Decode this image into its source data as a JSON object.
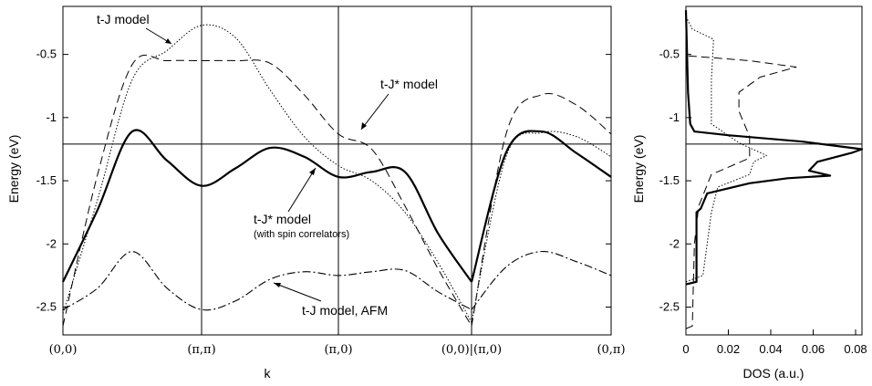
{
  "chart_data": [
    {
      "type": "line",
      "xlabel": "k",
      "ylabel": "Energy (eV)",
      "ylim": [
        -2.72,
        -0.12
      ],
      "y_ticks": [
        -0.5,
        -1,
        -1.5,
        -2,
        -2.5
      ],
      "y_tick_labels": [
        "-0.5",
        "-1",
        "-1.5",
        "-2",
        "-2.5"
      ],
      "x_ticks": [
        0,
        1,
        2,
        3,
        4
      ],
      "x_tick_labels": [
        "(0,0)",
        "(π,π)",
        "(π,0)",
        "(0,0)|(π,0)",
        "(0,π)"
      ],
      "panel_break": 3,
      "fermi_energy": -1.23,
      "grid": false,
      "legend": "none",
      "annotations": {
        "tj": "t-J model",
        "tjstar": "t-J* model",
        "tjspin": "t-J* model",
        "tjspin_sub": "(with spin correlators)",
        "afm": "t-J model, AFM"
      },
      "series": [
        {
          "style": "thick",
          "x": [
            0,
            0.25,
            0.5,
            0.75,
            1,
            1.25,
            1.5,
            1.75,
            2,
            2.25,
            2.5,
            2.75,
            3,
            3.25,
            3.5,
            3.75,
            4
          ],
          "y": [
            -2.3,
            -1.73,
            -1.11,
            -1.34,
            -1.54,
            -1.4,
            -1.24,
            -1.31,
            -1.47,
            -1.43,
            -1.43,
            -1.92,
            -2.3,
            -1.27,
            -1.11,
            -1.28,
            -1.47
          ]
        },
        {
          "style": "dotted",
          "x": [
            0,
            0.25,
            0.5,
            0.75,
            1,
            1.25,
            1.5,
            1.75,
            2,
            2.25,
            2.5,
            2.75,
            3,
            3.25,
            3.5,
            3.75,
            4
          ],
          "y": [
            -2.55,
            -1.65,
            -0.7,
            -0.47,
            -0.27,
            -0.37,
            -0.78,
            -1.15,
            -1.38,
            -1.5,
            -1.75,
            -2.15,
            -2.62,
            -1.3,
            -1.12,
            -1.15,
            -1.31
          ]
        },
        {
          "style": "dashed",
          "x": [
            0,
            0.25,
            0.5,
            0.75,
            1,
            1.25,
            1.5,
            1.75,
            2,
            2.25,
            2.5,
            2.75,
            3,
            3.25,
            3.5,
            3.75,
            4
          ],
          "y": [
            -2.65,
            -1.45,
            -0.58,
            -0.55,
            -0.55,
            -0.55,
            -0.57,
            -0.82,
            -1.13,
            -1.25,
            -1.7,
            -2.2,
            -2.65,
            -1.12,
            -0.82,
            -0.9,
            -1.13
          ]
        },
        {
          "style": "dashdot",
          "x": [
            0,
            0.25,
            0.5,
            0.75,
            1,
            1.25,
            1.5,
            1.75,
            2,
            2.25,
            2.5,
            2.75,
            3,
            3.25,
            3.5,
            3.75,
            4
          ],
          "y": [
            -2.52,
            -2.35,
            -2.06,
            -2.35,
            -2.52,
            -2.45,
            -2.28,
            -2.22,
            -2.25,
            -2.22,
            -2.21,
            -2.38,
            -2.52,
            -2.18,
            -2.06,
            -2.14,
            -2.25
          ]
        }
      ]
    },
    {
      "type": "line",
      "xlabel": "DOS (a.u.)",
      "ylabel": "Energy (eV)",
      "xlim": [
        0,
        0.083
      ],
      "ylim": [
        -2.72,
        -0.12
      ],
      "x_ticks": [
        0,
        0.02,
        0.04,
        0.06,
        0.08
      ],
      "x_tick_labels": [
        "0",
        "0.02",
        "0.04",
        "0.06",
        "0.08"
      ],
      "y_ticks": [
        -0.5,
        -1,
        -1.5,
        -2,
        -2.5
      ],
      "y_tick_labels": [
        "-0.5",
        "-1",
        "-1.5",
        "-2",
        "-2.5"
      ],
      "fermi_energy": -1.23,
      "grid": false,
      "legend": "none",
      "series": [
        {
          "style": "thick",
          "points": [
            [
              0,
              -2.32
            ],
            [
              0.005,
              -2.3
            ],
            [
              0.005,
              -1.75
            ],
            [
              0.007,
              -1.72
            ],
            [
              0.01,
              -1.6
            ],
            [
              0.03,
              -1.52
            ],
            [
              0.048,
              -1.48
            ],
            [
              0.068,
              -1.46
            ],
            [
              0.058,
              -1.42
            ],
            [
              0.062,
              -1.35
            ],
            [
              0.078,
              -1.28
            ],
            [
              0.083,
              -1.25
            ],
            [
              0.055,
              -1.19
            ],
            [
              0.02,
              -1.14
            ],
            [
              0.004,
              -1.11
            ],
            [
              0.002,
              -1.05
            ],
            [
              0.001,
              -0.8
            ],
            [
              0,
              -0.15
            ]
          ]
        },
        {
          "style": "dotted",
          "points": [
            [
              0,
              -2.3
            ],
            [
              0.008,
              -2.25
            ],
            [
              0.01,
              -2.0
            ],
            [
              0.012,
              -1.75
            ],
            [
              0.015,
              -1.55
            ],
            [
              0.03,
              -1.45
            ],
            [
              0.032,
              -1.35
            ],
            [
              0.038,
              -1.3
            ],
            [
              0.025,
              -1.2
            ],
            [
              0.012,
              -1.05
            ],
            [
              0.012,
              -0.7
            ],
            [
              0.013,
              -0.4
            ],
            [
              0.013,
              -0.38
            ],
            [
              0.003,
              -0.3
            ],
            [
              0,
              -0.2
            ]
          ]
        },
        {
          "style": "dashed",
          "points": [
            [
              0,
              -2.67
            ],
            [
              0.003,
              -2.65
            ],
            [
              0.004,
              -2.0
            ],
            [
              0.006,
              -1.7
            ],
            [
              0.012,
              -1.45
            ],
            [
              0.03,
              -1.32
            ],
            [
              0.03,
              -1.15
            ],
            [
              0.025,
              -0.95
            ],
            [
              0.025,
              -0.8
            ],
            [
              0.035,
              -0.68
            ],
            [
              0.052,
              -0.6
            ],
            [
              0.03,
              -0.55
            ],
            [
              0,
              -0.51
            ]
          ]
        }
      ]
    }
  ]
}
